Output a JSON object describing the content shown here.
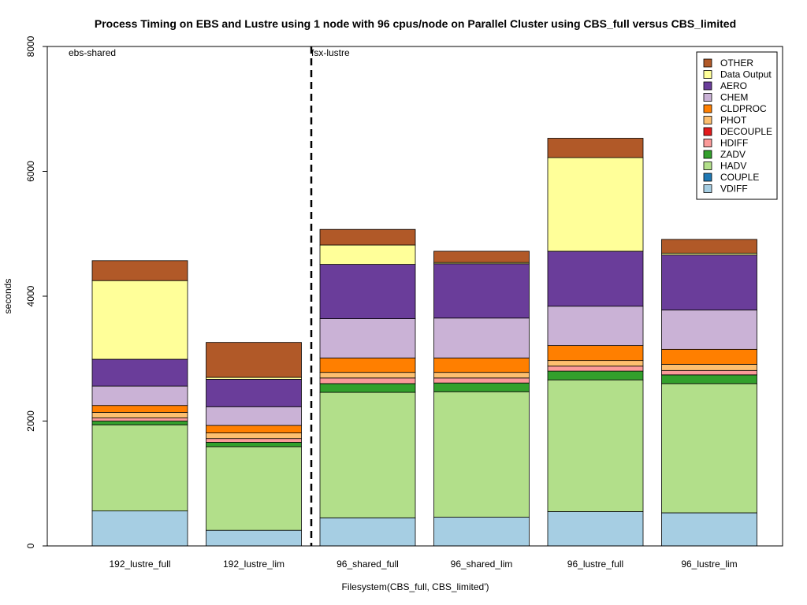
{
  "chart_data": {
    "type": "bar",
    "stacked": true,
    "title": "Process Timing on EBS and Lustre using 1 node with 96 cpus/node on Parallel Cluster using CBS_full versus CBS_limited",
    "xlabel": "Filesystem(CBS_full, CBS_limited')",
    "ylabel": "seconds",
    "ylim": [
      0,
      8000
    ],
    "yticks": [
      "0",
      "2000",
      "4000",
      "6000",
      "8000"
    ],
    "categories": [
      "192_lustre_full",
      "192_lustre_lim",
      "96_shared_full",
      "96_shared_lim",
      "96_lustre_full",
      "96_lustre_lim"
    ],
    "annotations": [
      {
        "text": "ebs-shared"
      },
      {
        "text": "fsx-lustre"
      }
    ],
    "divider_after_category": 1,
    "legend_position": "top-right",
    "series": [
      {
        "name": "VDIFF",
        "color": "#a6cee3",
        "values": [
          560,
          250,
          450,
          460,
          550,
          530
        ]
      },
      {
        "name": "COUPLE",
        "color": "#1f78b4",
        "values": [
          0,
          0,
          0,
          0,
          0,
          0
        ]
      },
      {
        "name": "HADV",
        "color": "#b2df8a",
        "values": [
          1380,
          1340,
          2010,
          2010,
          2110,
          2070
        ]
      },
      {
        "name": "ZADV",
        "color": "#33a02c",
        "values": [
          60,
          70,
          140,
          140,
          140,
          140
        ]
      },
      {
        "name": "HDIFF",
        "color": "#fb9a99",
        "values": [
          50,
          60,
          90,
          80,
          80,
          70
        ]
      },
      {
        "name": "DECOUPLE",
        "color": "#e31a1c",
        "values": [
          0,
          0,
          0,
          0,
          0,
          0
        ]
      },
      {
        "name": "PHOT",
        "color": "#fdbf6f",
        "values": [
          90,
          90,
          90,
          90,
          90,
          100
        ]
      },
      {
        "name": "CLDPROC",
        "color": "#ff7f00",
        "values": [
          110,
          120,
          230,
          230,
          240,
          240
        ]
      },
      {
        "name": "CHEM",
        "color": "#cab2d6",
        "values": [
          310,
          300,
          630,
          640,
          630,
          630
        ]
      },
      {
        "name": "AERO",
        "color": "#6a3d9a",
        "values": [
          430,
          440,
          870,
          870,
          880,
          880
        ]
      },
      {
        "name": "Data Output",
        "color": "#ffff99",
        "values": [
          1260,
          30,
          310,
          20,
          1500,
          30
        ]
      },
      {
        "name": "OTHER",
        "color": "#b15928",
        "values": [
          320,
          560,
          250,
          180,
          310,
          220
        ]
      }
    ]
  }
}
